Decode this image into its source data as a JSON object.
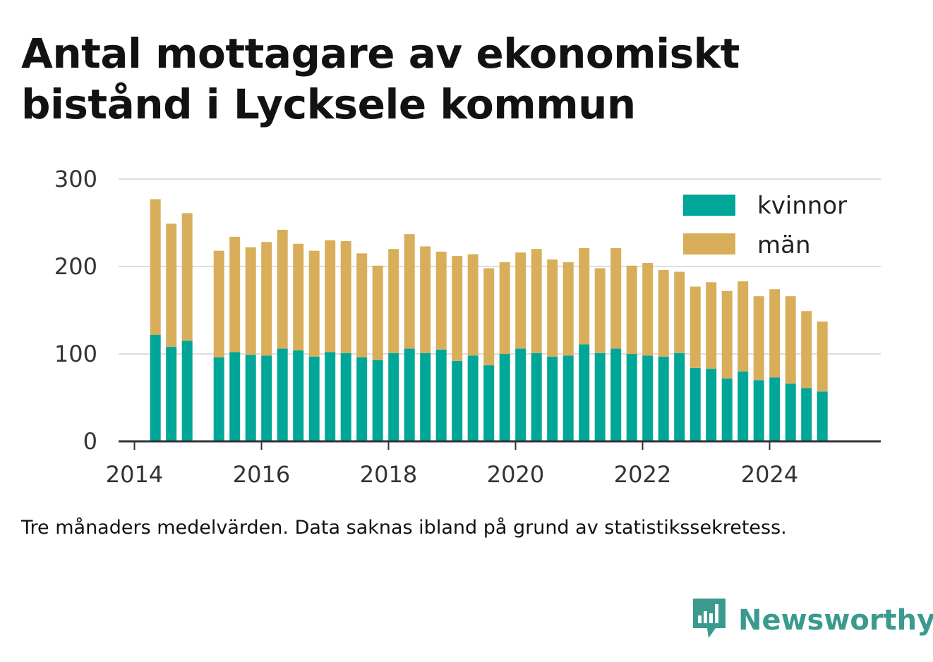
{
  "title": "Antal mottagare av ekonomiskt bistånd i Lycksele kommun",
  "note": "Tre månaders medelvärden. Data saknas ibland på grund av statistikssekretess.",
  "brand": {
    "name": "Newsworthy",
    "icon": "newsworthy-logo-icon"
  },
  "colors": {
    "kvinnor": "#00a697",
    "man": "#d9ae5a",
    "grid": "#dddddd",
    "axis": "#333333",
    "brand": "#3a9a8e"
  },
  "chart_data": {
    "type": "bar",
    "stacked": true,
    "xlabel": "",
    "ylabel": "",
    "ylim": [
      0,
      300
    ],
    "yticks": [
      0,
      100,
      200,
      300
    ],
    "xlim": [
      2013.75,
      2025.75
    ],
    "xticks": [
      2014,
      2016,
      2018,
      2020,
      2022,
      2024
    ],
    "xtick_labels": [
      "2014",
      "2016",
      "2018",
      "2020",
      "2022",
      "2024"
    ],
    "grid": true,
    "legend_position": "top-right",
    "x": [
      2014.33,
      2014.58,
      2014.83,
      2015.33,
      2015.58,
      2015.83,
      2016.08,
      2016.33,
      2016.58,
      2016.83,
      2017.08,
      2017.33,
      2017.58,
      2017.83,
      2018.08,
      2018.33,
      2018.58,
      2018.83,
      2019.08,
      2019.33,
      2019.58,
      2019.83,
      2020.08,
      2020.33,
      2020.58,
      2020.83,
      2021.08,
      2021.33,
      2021.58,
      2021.83,
      2022.08,
      2022.33,
      2022.58,
      2022.83,
      2023.08,
      2023.33,
      2023.58,
      2023.83,
      2024.08,
      2024.33,
      2024.58,
      2024.83
    ],
    "series": [
      {
        "name": "kvinnor",
        "values": [
          122,
          108,
          115,
          96,
          102,
          99,
          98,
          106,
          104,
          97,
          102,
          101,
          96,
          93,
          101,
          106,
          101,
          105,
          92,
          98,
          87,
          100,
          106,
          101,
          97,
          98,
          111,
          101,
          106,
          100,
          98,
          97,
          101,
          84,
          83,
          72,
          80,
          70,
          73,
          66,
          61,
          57
        ]
      },
      {
        "name": "män",
        "values": [
          155,
          141,
          146,
          122,
          132,
          123,
          130,
          136,
          122,
          121,
          128,
          128,
          119,
          108,
          119,
          131,
          122,
          112,
          120,
          116,
          111,
          105,
          110,
          119,
          111,
          107,
          110,
          97,
          115,
          101,
          106,
          99,
          93,
          93,
          99,
          100,
          103,
          96,
          101,
          100,
          88,
          80
        ]
      }
    ]
  }
}
